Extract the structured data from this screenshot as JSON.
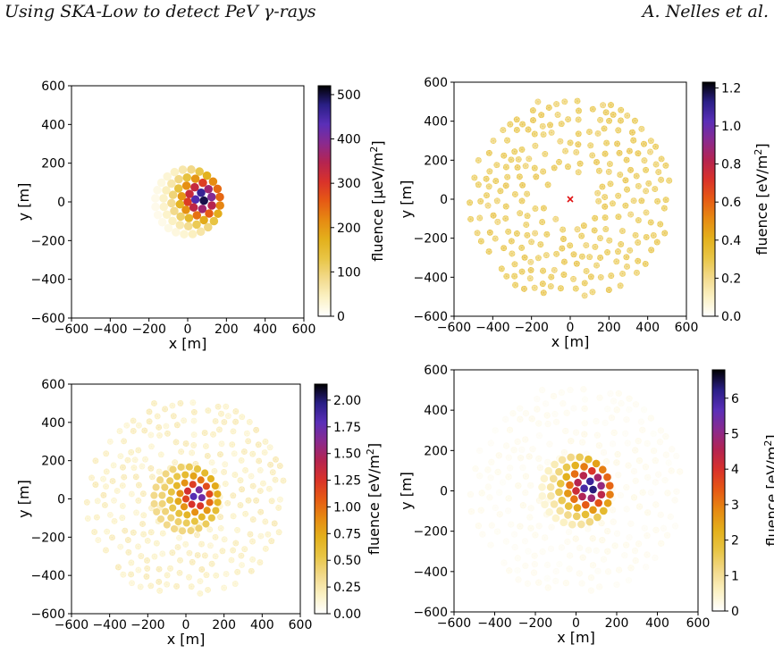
{
  "header": {
    "left": "Using SKA-Low to detect PeV γ-rays",
    "right": "A. Nelles et al."
  },
  "colors": {
    "cmap": [
      "#ffffff",
      "#fbf1c3",
      "#f2d98a",
      "#e8c545",
      "#e3b01c",
      "#e68a12",
      "#e65a14",
      "#d9322a",
      "#b52450",
      "#8a2a8e",
      "#5a2fb8",
      "#2a1f86",
      "#000000"
    ],
    "marker": "#e01010"
  },
  "chart_data": [
    {
      "type": "heatmap",
      "xlabel": "x [m]",
      "ylabel": "y [m]",
      "xlim": [
        -600,
        600
      ],
      "ylim": [
        -600,
        600
      ],
      "xticks": [
        "−600",
        "−400",
        "−200",
        "0",
        "200",
        "400",
        "600"
      ],
      "yticks": [
        "−600",
        "−400",
        "−200",
        "0",
        "200",
        "400",
        "600"
      ],
      "colorbar": {
        "label_main": "fluence [",
        "label_unit": "μeV/m",
        "label_sup": "2",
        "label_end": "]",
        "vmin": 0,
        "vmax": 520,
        "ticks": [
          0,
          100,
          200,
          300,
          400,
          500
        ],
        "tick_labels": [
          "0",
          "100",
          "200",
          "300",
          "400",
          "500"
        ]
      },
      "stations": "core",
      "core": [
        75,
        20
      ],
      "peak": 520
    },
    {
      "type": "heatmap",
      "xlabel": "x [m]",
      "ylabel": "y [m]",
      "xlim": [
        -600,
        600
      ],
      "ylim": [
        -600,
        600
      ],
      "xticks": [
        "−600",
        "−400",
        "−200",
        "0",
        "200",
        "400",
        "600"
      ],
      "yticks": [
        "−600",
        "−400",
        "−200",
        "0",
        "200",
        "400",
        "600"
      ],
      "colorbar": {
        "label_main": "fluence [",
        "label_unit": "eV/m",
        "label_sup": "2",
        "label_end": "]",
        "vmin": 0,
        "vmax": 1.23,
        "ticks": [
          0,
          0.2,
          0.4,
          0.6,
          0.8,
          1.0,
          1.2
        ],
        "tick_labels": [
          "0.0",
          "0.2",
          "0.4",
          "0.6",
          "0.8",
          "1.0",
          "1.2"
        ]
      },
      "stations": "outer",
      "core": [
        0,
        0
      ],
      "marker": [
        0,
        0
      ],
      "level": 0.3
    },
    {
      "type": "heatmap",
      "xlabel": "x [m]",
      "ylabel": "y [m]",
      "xlim": [
        -600,
        600
      ],
      "ylim": [
        -600,
        600
      ],
      "xticks": [
        "−600",
        "−400",
        "−200",
        "0",
        "200",
        "400",
        "600"
      ],
      "yticks": [
        "−600",
        "−400",
        "−200",
        "0",
        "200",
        "400",
        "600"
      ],
      "colorbar": {
        "label_main": "fluence [",
        "label_unit": "eV/m",
        "label_sup": "2",
        "label_end": "]",
        "vmin": 0,
        "vmax": 2.15,
        "ticks": [
          0,
          0.25,
          0.5,
          0.75,
          1.0,
          1.25,
          1.5,
          1.75,
          2.0
        ],
        "tick_labels": [
          "0.00",
          "0.25",
          "0.50",
          "0.75",
          "1.00",
          "1.25",
          "1.50",
          "1.75",
          "2.00"
        ]
      },
      "stations": "both",
      "core": [
        60,
        20
      ],
      "level": 0.2,
      "peak": 2.1
    },
    {
      "type": "heatmap",
      "xlabel": "x [m]",
      "ylabel": "y [m]",
      "xlim": [
        -600,
        600
      ],
      "ylim": [
        -600,
        600
      ],
      "xticks": [
        "−600",
        "−400",
        "−200",
        "0",
        "200",
        "400",
        "600"
      ],
      "yticks": [
        "−600",
        "−400",
        "−200",
        "0",
        "200",
        "400",
        "600"
      ],
      "colorbar": {
        "label_main": "fluence [",
        "label_unit": "eV/m",
        "label_sup": "2",
        "label_end": "]",
        "vmin": 0,
        "vmax": 6.8,
        "ticks": [
          0,
          1,
          2,
          3,
          4,
          5,
          6
        ],
        "tick_labels": [
          "0",
          "1",
          "2",
          "3",
          "4",
          "5",
          "6"
        ]
      },
      "stations": "both",
      "core": [
        70,
        20
      ],
      "level": 0.3,
      "peak": 6.7
    }
  ]
}
